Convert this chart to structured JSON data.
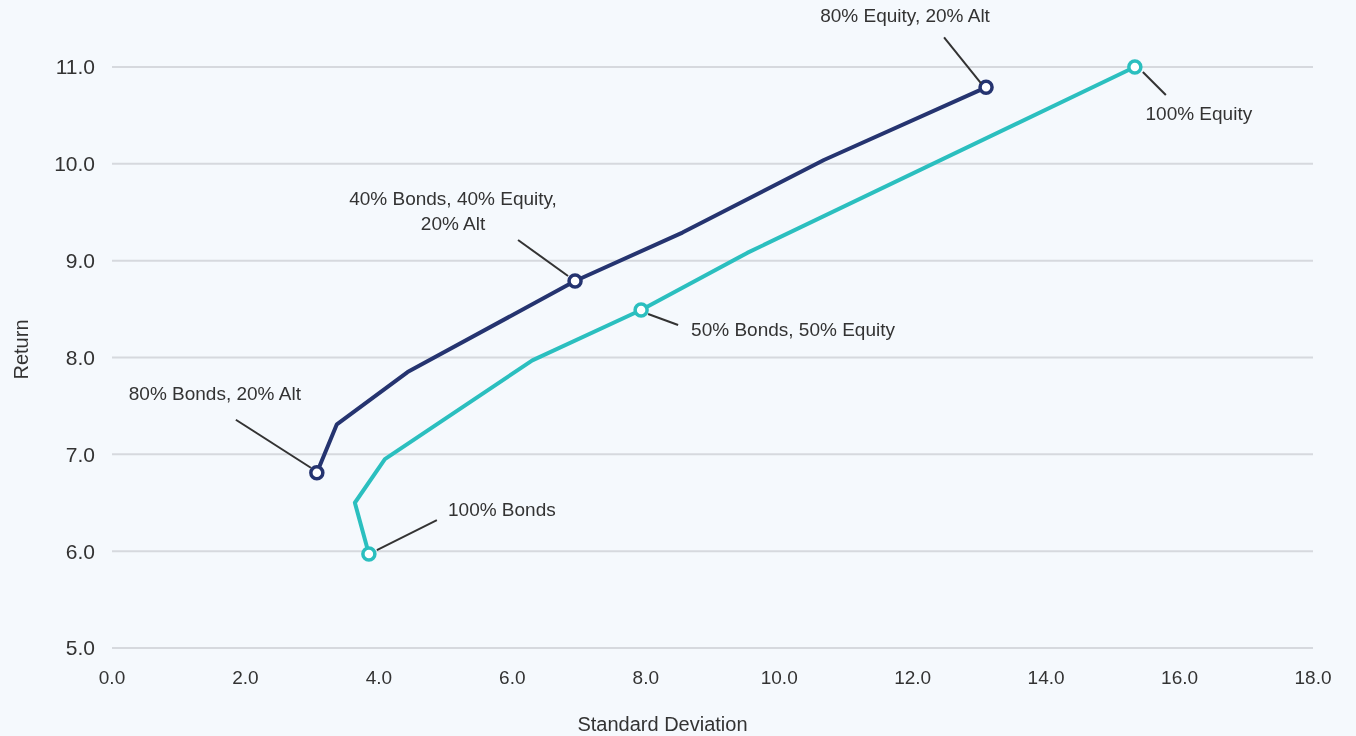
{
  "chart_data": {
    "type": "line",
    "xlabel": "Standard Deviation",
    "ylabel": "Return",
    "xlim": [
      0,
      18
    ],
    "xticks": [
      {
        "value": 0,
        "label": "0.0"
      },
      {
        "value": 2,
        "label": "2.0"
      },
      {
        "value": 4,
        "label": "4.0"
      },
      {
        "value": 6,
        "label": "6.0"
      },
      {
        "value": 8,
        "label": "8.0"
      },
      {
        "value": 10,
        "label": "10.0"
      },
      {
        "value": 12,
        "label": "12.0"
      },
      {
        "value": 14,
        "label": "14.0"
      },
      {
        "value": 16,
        "label": "16.0"
      },
      {
        "value": 18,
        "label": "18.0"
      }
    ],
    "ylim": [
      5,
      11
    ],
    "yticks": [
      {
        "value": 5,
        "label": "5.0"
      },
      {
        "value": 6,
        "label": "6.0"
      },
      {
        "value": 7,
        "label": "7.0"
      },
      {
        "value": 8,
        "label": "8.0"
      },
      {
        "value": 9,
        "label": "9.0"
      },
      {
        "value": 10,
        "label": "10.0"
      },
      {
        "value": 11,
        "label": "11.0"
      }
    ],
    "grid": "y",
    "line_style": "solid",
    "series": [
      {
        "color": "#253470",
        "marker": "none",
        "x": [
          3.07,
          3.37,
          4.43,
          6.94,
          8.55,
          10.67,
          13.1
        ],
        "values": [
          6.81,
          7.31,
          7.85,
          8.79,
          9.29,
          10.04,
          10.79
        ]
      },
      {
        "color": "#2bbfbf",
        "marker": "none",
        "x": [
          3.85,
          3.64,
          4.09,
          6.3,
          7.93,
          9.52,
          15.33
        ],
        "values": [
          5.97,
          6.5,
          6.95,
          7.97,
          8.49,
          9.08,
          11.0
        ]
      },
      {
        "type": "scatter",
        "color": "#253470",
        "marker": "circle",
        "x": [
          3.07,
          6.94,
          13.1
        ],
        "values": [
          6.81,
          8.79,
          10.79
        ]
      },
      {
        "type": "scatter",
        "color": "#2bbfbf",
        "marker": "circle",
        "x": [
          3.85,
          7.93,
          15.33
        ],
        "values": [
          5.97,
          8.49,
          11.0
        ]
      }
    ],
    "annotations": [
      {
        "text": "80% Bonds, 20% Alt",
        "x": 3.07,
        "y": 6.81
      },
      {
        "text": "40% Bonds, 40% Equity,\n20% Alt",
        "x": 6.94,
        "y": 8.79
      },
      {
        "text": "80% Equity, 20% Alt",
        "x": 13.1,
        "y": 10.79
      },
      {
        "text": "100% Bonds",
        "x": 3.85,
        "y": 5.97
      },
      {
        "text": "50% Bonds, 50% Equity",
        "x": 7.93,
        "y": 8.49
      },
      {
        "text": "100% Equity",
        "x": 15.33,
        "y": 11.0
      }
    ]
  }
}
